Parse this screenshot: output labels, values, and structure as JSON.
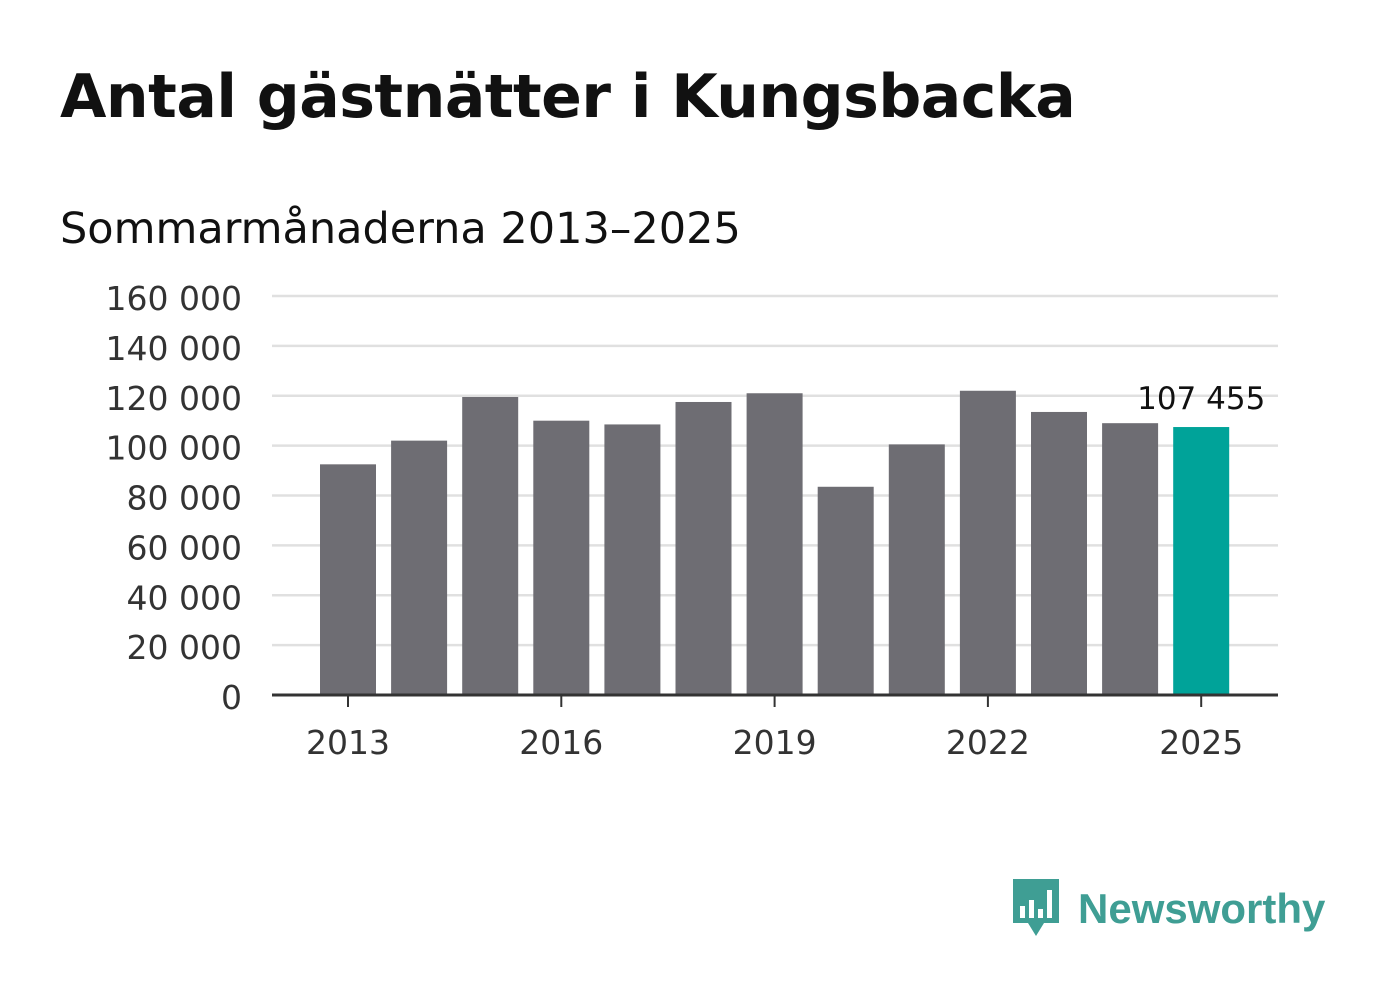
{
  "title": "Antal gästnätter i Kungsbacka",
  "subtitle": "Sommarmånaderna 2013–2025",
  "brand": {
    "name": "Newsworthy",
    "color": "#3f9e94",
    "icon": "bar-chart-speech-bubble-icon"
  },
  "chart_data": {
    "type": "bar",
    "categories": [
      2013,
      2014,
      2015,
      2016,
      2017,
      2018,
      2019,
      2020,
      2021,
      2022,
      2023,
      2024,
      2025
    ],
    "values": [
      92500,
      102000,
      119500,
      110000,
      108500,
      117500,
      121000,
      83500,
      100500,
      122000,
      113500,
      109000,
      107455
    ],
    "x_tick_labels": [
      "2013",
      "2016",
      "2019",
      "2022",
      "2025"
    ],
    "x_ticks": [
      2013,
      2016,
      2019,
      2022,
      2025
    ],
    "y_tick_labels": [
      "0",
      "20 000",
      "40 000",
      "60 000",
      "80 000",
      "100 000",
      "120 000",
      "140 000",
      "160 000"
    ],
    "y_ticks": [
      0,
      20000,
      40000,
      60000,
      80000,
      100000,
      120000,
      140000,
      160000
    ],
    "ylim": [
      0,
      160000
    ],
    "grid": true,
    "highlight": {
      "category": 2025,
      "label": "107 455"
    },
    "colors": {
      "bar": "#6e6d73",
      "highlight": "#00a399",
      "grid": "#e0e0e0",
      "axis": "#333333",
      "tick_text": "#333333"
    }
  }
}
